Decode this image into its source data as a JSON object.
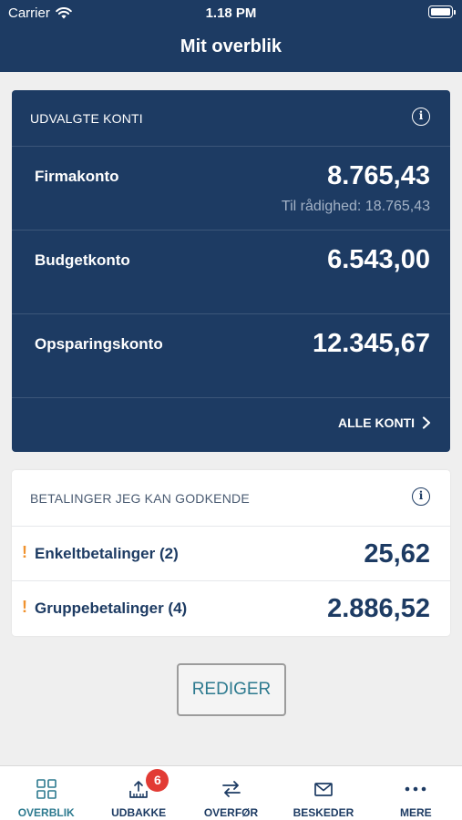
{
  "status_bar": {
    "carrier": "Carrier",
    "time": "1.18 PM"
  },
  "header": {
    "title": "Mit overblik"
  },
  "accounts_card": {
    "title": "UDVALGTE KONTI",
    "accounts": [
      {
        "name": "Firmakonto",
        "balance": "8.765,43",
        "available": "Til rådighed: 18.765,43"
      },
      {
        "name": "Budgetkonto",
        "balance": "6.543,00"
      },
      {
        "name": "Opsparingskonto",
        "balance": "12.345,67"
      }
    ],
    "all_accounts_label": "ALLE KONTI"
  },
  "payments_card": {
    "title": "BETALINGER JEG KAN GODKENDE",
    "warning_glyph": "!",
    "items": [
      {
        "name": "Enkeltbetalinger (2)",
        "amount": "25,62"
      },
      {
        "name": "Gruppebetalinger (4)",
        "amount": "2.886,52"
      }
    ]
  },
  "edit_button_label": "REDIGER",
  "tab_bar": {
    "tabs": [
      {
        "label": "OVERBLIK",
        "icon": "overview-grid-icon",
        "active": true
      },
      {
        "label": "UDBAKKE",
        "icon": "outbox-icon",
        "badge": "6"
      },
      {
        "label": "OVERFØR",
        "icon": "transfer-icon"
      },
      {
        "label": "BESKEDER",
        "icon": "envelope-icon"
      },
      {
        "label": "MERE",
        "icon": "more-dots-icon"
      }
    ]
  },
  "colors": {
    "primary_navy": "#1d3b63",
    "accent_teal": "#2d7a8f",
    "warning_orange": "#f0922e",
    "badge_red": "#e23b34"
  }
}
